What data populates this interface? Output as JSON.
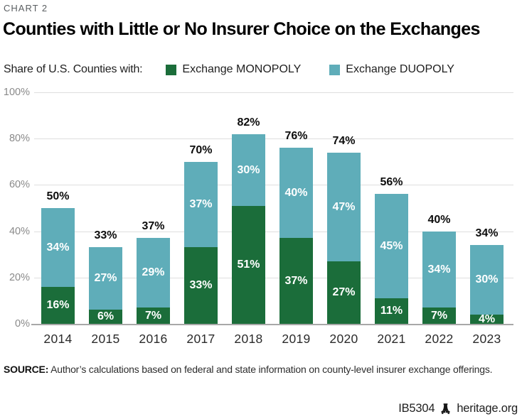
{
  "page": {
    "chart_label": "CHART 2",
    "title": "Counties with Little or No Insurer Choice on the Exchanges"
  },
  "legend": {
    "prefix": "Share of U.S. Counties with:",
    "items": [
      {
        "label": "Exchange MONOPOLY",
        "color": "#1b6d3a"
      },
      {
        "label": "Exchange DUOPOLY",
        "color": "#5fadb9"
      }
    ]
  },
  "chart_data": {
    "type": "bar",
    "stacked": true,
    "categories": [
      "2014",
      "2015",
      "2016",
      "2017",
      "2018",
      "2019",
      "2020",
      "2021",
      "2022",
      "2023"
    ],
    "series": [
      {
        "name": "Exchange MONOPOLY",
        "color": "#1b6d3a",
        "values": [
          16,
          6,
          7,
          33,
          51,
          37,
          27,
          11,
          7,
          4
        ]
      },
      {
        "name": "Exchange DUOPOLY",
        "color": "#5fadb9",
        "values": [
          34,
          27,
          29,
          37,
          30,
          40,
          47,
          45,
          34,
          30
        ]
      }
    ],
    "totals": [
      50,
      33,
      37,
      70,
      82,
      76,
      74,
      56,
      40,
      34
    ],
    "total_labels": [
      "50%",
      "33%",
      "37%",
      "70%",
      "82%",
      "76%",
      "74%",
      "56%",
      "40%",
      "34%"
    ],
    "y_ticks": [
      "0%",
      "20%",
      "40%",
      "60%",
      "80%",
      "100%"
    ],
    "y_tick_values": [
      0,
      20,
      40,
      60,
      80,
      100
    ],
    "ylim": [
      0,
      100
    ],
    "grid": true,
    "legend_position": "top",
    "value_suffix": "%"
  },
  "footer": {
    "source_label": "SOURCE:",
    "source_text": " Author’s calculations based on federal and state information on county-level insurer exchange offerings.",
    "doc_id": "IB5304",
    "site": "heritage.org",
    "logo_icon": "liberty-bell-icon"
  }
}
